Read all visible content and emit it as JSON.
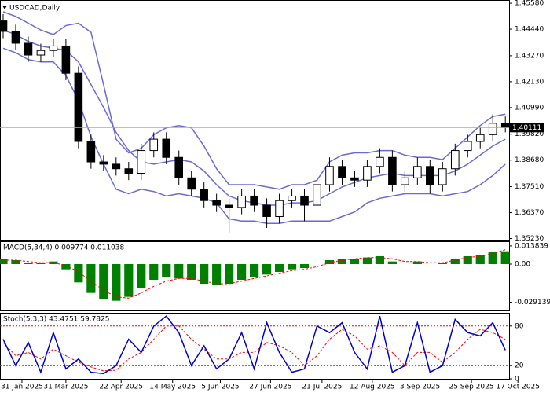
{
  "chart_data": [
    {
      "type": "candlestick",
      "title": "USDCAD,Daily",
      "open": [
        1.448,
        1.4434,
        1.4382,
        1.433,
        1.435,
        1.437,
        1.425,
        1.395,
        1.386,
        1.385,
        1.383,
        1.381,
        1.391,
        1.396,
        1.388,
        1.379,
        1.374,
        1.369,
        1.367,
        1.366,
        1.371,
        1.367,
        1.362,
        1.369,
        1.371,
        1.367,
        1.376,
        1.384,
        1.379,
        1.378,
        1.384,
        1.388,
        1.376,
        1.379,
        1.384,
        1.376,
        1.383,
        1.391,
        1.395,
        1.398,
        1.403
      ],
      "high": [
        1.451,
        1.4464,
        1.4412,
        1.438,
        1.44,
        1.44,
        1.428,
        1.398,
        1.389,
        1.388,
        1.386,
        1.394,
        1.399,
        1.399,
        1.391,
        1.382,
        1.377,
        1.372,
        1.37,
        1.374,
        1.374,
        1.37,
        1.372,
        1.374,
        1.374,
        1.379,
        1.388,
        1.387,
        1.382,
        1.387,
        1.392,
        1.391,
        1.382,
        1.388,
        1.387,
        1.386,
        1.394,
        1.398,
        1.401,
        1.407,
        1.406
      ],
      "low": [
        1.4404,
        1.4352,
        1.43,
        1.43,
        1.432,
        1.422,
        1.392,
        1.383,
        1.382,
        1.38,
        1.378,
        1.378,
        1.388,
        1.385,
        1.376,
        1.371,
        1.366,
        1.364,
        1.355,
        1.363,
        1.364,
        1.357,
        1.359,
        1.366,
        1.36,
        1.364,
        1.373,
        1.376,
        1.375,
        1.375,
        1.381,
        1.373,
        1.373,
        1.376,
        1.372,
        1.373,
        1.38,
        1.388,
        1.392,
        1.395,
        1.399
      ],
      "close": [
        1.4434,
        1.4382,
        1.433,
        1.435,
        1.437,
        1.425,
        1.395,
        1.386,
        1.385,
        1.383,
        1.381,
        1.391,
        1.396,
        1.388,
        1.379,
        1.374,
        1.369,
        1.367,
        1.366,
        1.371,
        1.367,
        1.362,
        1.369,
        1.371,
        1.367,
        1.376,
        1.384,
        1.379,
        1.378,
        1.384,
        1.388,
        1.376,
        1.379,
        1.384,
        1.376,
        1.383,
        1.391,
        1.395,
        1.398,
        1.403,
        1.4011
      ],
      "bands": {
        "color": "#6a6ad6",
        "upper": [
          1.452,
          1.45,
          1.447,
          1.444,
          1.442,
          1.446,
          1.447,
          1.443,
          1.42,
          1.396,
          1.39,
          1.392,
          1.398,
          1.401,
          1.402,
          1.401,
          1.393,
          1.383,
          1.376,
          1.376,
          1.376,
          1.375,
          1.374,
          1.376,
          1.376,
          1.378,
          1.386,
          1.389,
          1.39,
          1.39,
          1.391,
          1.391,
          1.389,
          1.388,
          1.388,
          1.387,
          1.392,
          1.397,
          1.402,
          1.406,
          1.407
        ],
        "middle": [
          1.444,
          1.442,
          1.439,
          1.437,
          1.436,
          1.435,
          1.43,
          1.42,
          1.41,
          1.399,
          1.391,
          1.386,
          1.385,
          1.386,
          1.387,
          1.386,
          1.382,
          1.376,
          1.371,
          1.369,
          1.368,
          1.367,
          1.367,
          1.368,
          1.368,
          1.369,
          1.372,
          1.375,
          1.377,
          1.379,
          1.38,
          1.381,
          1.38,
          1.38,
          1.38,
          1.38,
          1.382,
          1.385,
          1.389,
          1.393,
          1.396
        ],
        "lower": [
          1.436,
          1.434,
          1.431,
          1.43,
          1.43,
          1.424,
          1.413,
          1.397,
          1.385,
          1.374,
          1.372,
          1.374,
          1.373,
          1.371,
          1.372,
          1.371,
          1.37,
          1.368,
          1.361,
          1.36,
          1.36,
          1.359,
          1.359,
          1.36,
          1.36,
          1.36,
          1.36,
          1.362,
          1.364,
          1.368,
          1.37,
          1.371,
          1.372,
          1.372,
          1.372,
          1.371,
          1.372,
          1.373,
          1.376,
          1.38,
          1.385
        ]
      },
      "last_price": 1.40111,
      "ylim": [
        1.3518,
        1.4572
      ],
      "yticks": [
        {
          "value": 1.4558,
          "label": "1.45580"
        },
        {
          "value": 1.4444,
          "label": "1.44440"
        },
        {
          "value": 1.4327,
          "label": "1.43270"
        },
        {
          "value": 1.4213,
          "label": "1.42130"
        },
        {
          "value": 1.4099,
          "label": "1.40990"
        },
        {
          "value": 1.3982,
          "label": "1.39820"
        },
        {
          "value": 1.3868,
          "label": "1.38680"
        },
        {
          "value": 1.3751,
          "label": "1.37510"
        },
        {
          "value": 1.3637,
          "label": "1.36370"
        },
        {
          "value": 1.3523,
          "label": "1.35230"
        }
      ],
      "xlim": [
        -0.25,
        40.3
      ],
      "xticks": [
        {
          "value": 1.5,
          "label": "31 Jan 2025"
        },
        {
          "value": 5,
          "label": "31 Mar 2025"
        },
        {
          "value": 9.4,
          "label": "22 Apr 2025"
        },
        {
          "value": 13.5,
          "label": "14 May 2025"
        },
        {
          "value": 17.3,
          "label": "5 Jun 2025"
        },
        {
          "value": 21.3,
          "label": "27 Jun 2025"
        },
        {
          "value": 25.4,
          "label": "21 Jul 2025"
        },
        {
          "value": 29.4,
          "label": "12 Aug 2025"
        },
        {
          "value": 33.2,
          "label": "3 Sep 2025"
        },
        {
          "value": 37.3,
          "label": "25 Sep 2025"
        },
        {
          "value": 41,
          "label": "17 Oct 2025"
        }
      ]
    },
    {
      "type": "bar",
      "title": "MACD(5,34,4) 0.009774 0.011038",
      "color": "#008000",
      "signal_color": "#ff0000",
      "values": [
        0.004,
        0.003,
        0.001,
        0.001,
        0.002,
        -0.004,
        -0.014,
        -0.022,
        -0.027,
        -0.028,
        -0.025,
        -0.018,
        -0.012,
        -0.01,
        -0.011,
        -0.012,
        -0.015,
        -0.016,
        -0.015,
        -0.012,
        -0.01,
        -0.008,
        -0.006,
        -0.004,
        -0.003,
        0.0,
        0.003,
        0.004,
        0.004,
        0.005,
        0.006,
        0.002,
        0.0,
        0.002,
        0.0,
        0.001,
        0.004,
        0.006,
        0.007,
        0.009,
        0.009774
      ],
      "signal": [
        0.003,
        0.003,
        0.002,
        0.001,
        0.001,
        -0.001,
        -0.006,
        -0.013,
        -0.02,
        -0.025,
        -0.026,
        -0.022,
        -0.017,
        -0.013,
        -0.011,
        -0.011,
        -0.013,
        -0.015,
        -0.015,
        -0.013,
        -0.011,
        -0.009,
        -0.007,
        -0.005,
        -0.004,
        -0.002,
        0.001,
        0.003,
        0.004,
        0.005,
        0.005,
        0.004,
        0.002,
        0.002,
        0.001,
        0.001,
        0.003,
        0.005,
        0.006,
        0.008,
        0.011038
      ],
      "ylim": [
        -0.0354,
        0.0174
      ],
      "yticks": [
        0.013839,
        {
          "value": 0,
          "label": "0.00"
        },
        -0.029139
      ]
    },
    {
      "type": "line",
      "title": "Stoch(5,3,3) 43.4751 59.7825",
      "color": "#0000cc",
      "signal_color": "#ff0000",
      "values": [
        60,
        20,
        55,
        10,
        70,
        15,
        30,
        10,
        8,
        20,
        60,
        40,
        80,
        95,
        70,
        20,
        50,
        15,
        30,
        70,
        15,
        85,
        40,
        10,
        15,
        80,
        70,
        85,
        40,
        15,
        95,
        10,
        20,
        85,
        10,
        20,
        90,
        70,
        65,
        85,
        43.4751
      ],
      "signal": [
        55,
        35,
        40,
        30,
        45,
        35,
        25,
        18,
        12,
        13,
        30,
        40,
        60,
        80,
        80,
        60,
        45,
        30,
        30,
        40,
        40,
        55,
        50,
        40,
        20,
        35,
        60,
        75,
        65,
        45,
        50,
        40,
        20,
        40,
        40,
        25,
        40,
        60,
        75,
        70,
        59.7825
      ],
      "ylim": [
        0,
        100
      ],
      "yticks": [
        80,
        20,
        0
      ],
      "levels": [
        80,
        20
      ]
    }
  ]
}
